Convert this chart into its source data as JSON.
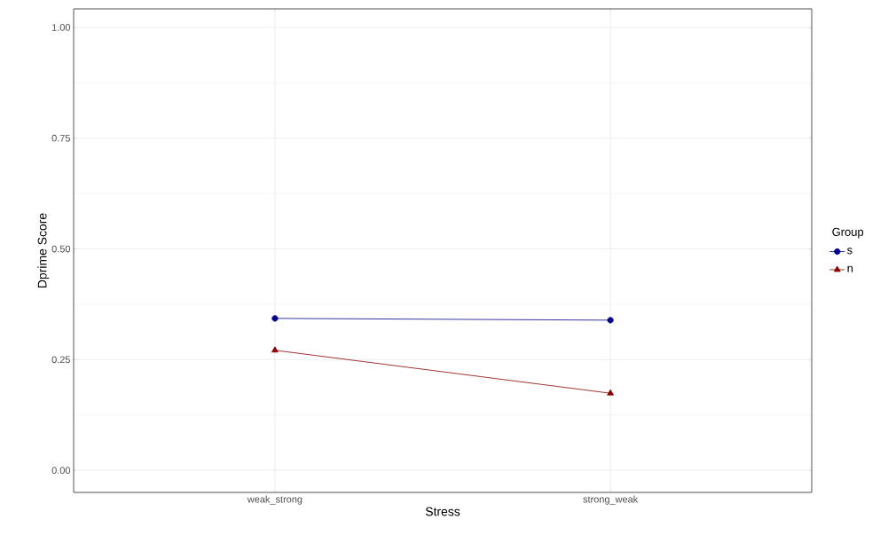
{
  "chart_data": {
    "type": "line",
    "xlabel": "Stress",
    "ylabel": "Dprime Score",
    "legend_title": "Group",
    "categories": [
      "weak_strong",
      "strong_weak"
    ],
    "series": [
      {
        "name": "s",
        "color": "#00008b",
        "marker": "circle",
        "values": [
          0.343,
          0.339
        ]
      },
      {
        "name": "n",
        "color": "#8b0000",
        "marker": "triangle",
        "values": [
          0.271,
          0.174
        ]
      }
    ],
    "ylim": [
      -0.05,
      1.042
    ],
    "yticks": [
      {
        "value": 0,
        "label": "0.00"
      },
      {
        "value": 0.25,
        "label": "0.25"
      },
      {
        "value": 0.5,
        "label": "0.50"
      },
      {
        "value": 0.75,
        "label": "0.75"
      },
      {
        "value": 1,
        "label": "1.00"
      }
    ],
    "grid": true,
    "legend": "right",
    "line_style": "solid"
  }
}
